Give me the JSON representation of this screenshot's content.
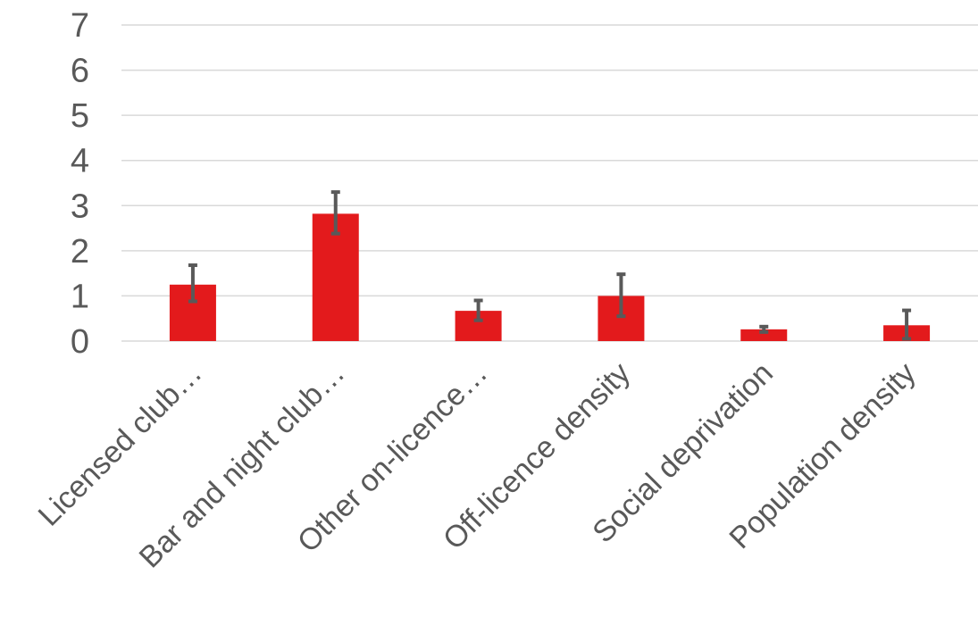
{
  "chart_data": {
    "type": "bar",
    "title": "",
    "xlabel": "",
    "ylabel": "",
    "ylim": [
      0,
      7
    ],
    "yticks": [
      0,
      1,
      2,
      3,
      4,
      5,
      6,
      7
    ],
    "grid": true,
    "legend": "none",
    "categories": [
      "Licensed club…",
      "Bar and night club…",
      "Other on-licence…",
      "Off-licence density",
      "Social deprivation",
      "Population density"
    ],
    "series": [
      {
        "values": [
          1.25,
          2.82,
          0.67,
          1.0,
          0.26,
          0.35
        ],
        "error_low": [
          0.88,
          2.38,
          0.46,
          0.55,
          0.2,
          0.05
        ],
        "error_high": [
          1.68,
          3.3,
          0.9,
          1.48,
          0.32,
          0.68
        ],
        "color": "#e31a1c"
      }
    ],
    "errorbar_color": "#595959",
    "grid_color": "#d9d9d9"
  }
}
